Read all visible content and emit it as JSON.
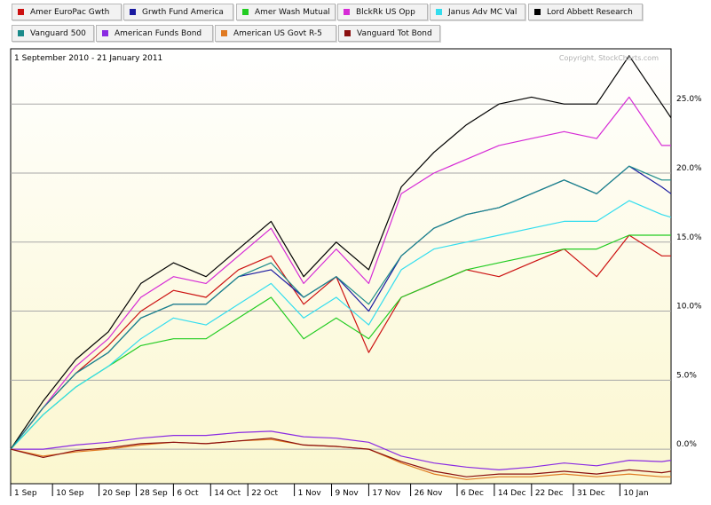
{
  "colors": {
    "Amer EuroPac Gwth": "#cc1111",
    "Grwth Fund America": "#1a1aa0",
    "Amer Wash Mutual": "#22cc22",
    "BlckRk US Opp": "#d62ad6",
    "Janus Adv MC Val": "#33ddee",
    "Lord Abbett Research": "#000000",
    "Vanguard 500": "#1a8a8a",
    "American Funds Bond": "#8a2be2",
    "American US Govt R-5": "#e07a22",
    "Vanguard Tot Bond": "#8b1010"
  },
  "chart_data": {
    "type": "line",
    "title": "1 September 2010 - 21 January 2011",
    "copyright": "Copyright, StockCharts.com",
    "x": [
      "2010-09-01",
      "2010-09-08",
      "2010-09-15",
      "2010-09-22",
      "2010-09-29",
      "2010-10-06",
      "2010-10-13",
      "2010-10-20",
      "2010-10-27",
      "2010-11-03",
      "2010-11-10",
      "2010-11-17",
      "2010-11-24",
      "2010-12-01",
      "2010-12-08",
      "2010-12-15",
      "2010-12-22",
      "2010-12-29",
      "2011-01-05",
      "2011-01-12",
      "2011-01-19",
      "2011-01-21"
    ],
    "xlim": [
      "2010-09-01",
      "2011-01-21"
    ],
    "ylim": [
      -2.5,
      29
    ],
    "yticks": [
      "25.0%",
      "20.0%",
      "15.0%",
      "10.0%",
      "5.0%",
      "0.0%"
    ],
    "ytick_values": [
      25,
      20,
      15,
      10,
      5,
      0
    ],
    "xticks": [
      "1 Sep",
      "10 Sep",
      "20 Sep",
      "28 Sep",
      "6 Oct",
      "14 Oct",
      "22 Oct",
      "1 Nov",
      "9 Nov",
      "17 Nov",
      "26 Nov",
      "6 Dec",
      "14 Dec",
      "22 Dec",
      "31 Dec",
      "10 Jan"
    ],
    "xtick_dates": [
      "2010-09-01",
      "2010-09-10",
      "2010-09-20",
      "2010-09-28",
      "2010-10-06",
      "2010-10-14",
      "2010-10-22",
      "2010-11-01",
      "2010-11-09",
      "2010-11-17",
      "2010-11-26",
      "2010-12-06",
      "2010-12-14",
      "2010-12-22",
      "2010-12-31",
      "2011-01-10"
    ],
    "grid": true,
    "legend_position": "top",
    "series": [
      {
        "name": "Amer EuroPac Gwth",
        "values": [
          0,
          3.0,
          5.5,
          7.5,
          10.0,
          11.5,
          11.0,
          13.0,
          14.0,
          10.5,
          12.5,
          7.0,
          11.0,
          12.0,
          13.0,
          12.5,
          13.5,
          14.5,
          12.5,
          15.5,
          14.0,
          14.0
        ]
      },
      {
        "name": "Grwth Fund America",
        "values": [
          0,
          3.0,
          5.5,
          7.0,
          9.5,
          10.5,
          10.5,
          12.5,
          13.0,
          11.0,
          12.5,
          10.0,
          14.0,
          16.0,
          17.0,
          17.5,
          18.5,
          19.5,
          18.5,
          20.5,
          19.0,
          18.5
        ]
      },
      {
        "name": "Amer Wash Mutual",
        "values": [
          0,
          2.5,
          4.5,
          6.0,
          7.5,
          8.0,
          8.0,
          9.5,
          11.0,
          8.0,
          9.5,
          8.0,
          11.0,
          12.0,
          13.0,
          13.5,
          14.0,
          14.5,
          14.5,
          15.5,
          15.5,
          15.5
        ]
      },
      {
        "name": "BlckRk US Opp",
        "values": [
          0,
          3.0,
          6.0,
          8.0,
          11.0,
          12.5,
          12.0,
          14.0,
          16.0,
          12.0,
          14.5,
          12.0,
          18.5,
          20.0,
          21.0,
          22.0,
          22.5,
          23.0,
          22.5,
          25.5,
          22.0,
          22.0
        ]
      },
      {
        "name": "Janus Adv MC Val",
        "values": [
          0,
          2.5,
          4.5,
          6.0,
          8.0,
          9.5,
          9.0,
          10.5,
          12.0,
          9.5,
          11.0,
          9.0,
          13.0,
          14.5,
          15.0,
          15.5,
          16.0,
          16.5,
          16.5,
          18.0,
          17.0,
          16.8
        ]
      },
      {
        "name": "Lord Abbett Research",
        "values": [
          0,
          3.5,
          6.5,
          8.5,
          12.0,
          13.5,
          12.5,
          14.5,
          16.5,
          12.5,
          15.0,
          13.0,
          19.0,
          21.5,
          23.5,
          25.0,
          25.5,
          25.0,
          25.0,
          28.5,
          25.0,
          24.0
        ]
      },
      {
        "name": "Vanguard 500",
        "values": [
          0,
          3.0,
          5.5,
          7.0,
          9.5,
          10.5,
          10.5,
          12.5,
          13.5,
          11.0,
          12.5,
          10.5,
          14.0,
          16.0,
          17.0,
          17.5,
          18.5,
          19.5,
          18.5,
          20.5,
          19.5,
          19.5
        ]
      },
      {
        "name": "American Funds Bond",
        "values": [
          0,
          0.0,
          0.3,
          0.5,
          0.8,
          1.0,
          1.0,
          1.2,
          1.3,
          0.9,
          0.8,
          0.5,
          -0.5,
          -1.0,
          -1.3,
          -1.5,
          -1.3,
          -1.0,
          -1.2,
          -0.8,
          -0.9,
          -0.8
        ]
      },
      {
        "name": "American US Govt R-5",
        "values": [
          0,
          -0.5,
          -0.2,
          0.0,
          0.3,
          0.5,
          0.4,
          0.6,
          0.7,
          0.3,
          0.2,
          0.0,
          -1.0,
          -1.8,
          -2.2,
          -2.0,
          -2.0,
          -1.8,
          -2.0,
          -1.8,
          -2.0,
          -2.0
        ]
      },
      {
        "name": "Vanguard Tot Bond",
        "values": [
          0,
          -0.6,
          -0.1,
          0.1,
          0.4,
          0.5,
          0.4,
          0.6,
          0.8,
          0.3,
          0.2,
          0.0,
          -0.9,
          -1.6,
          -2.0,
          -1.8,
          -1.8,
          -1.6,
          -1.8,
          -1.5,
          -1.7,
          -1.6
        ]
      }
    ]
  }
}
